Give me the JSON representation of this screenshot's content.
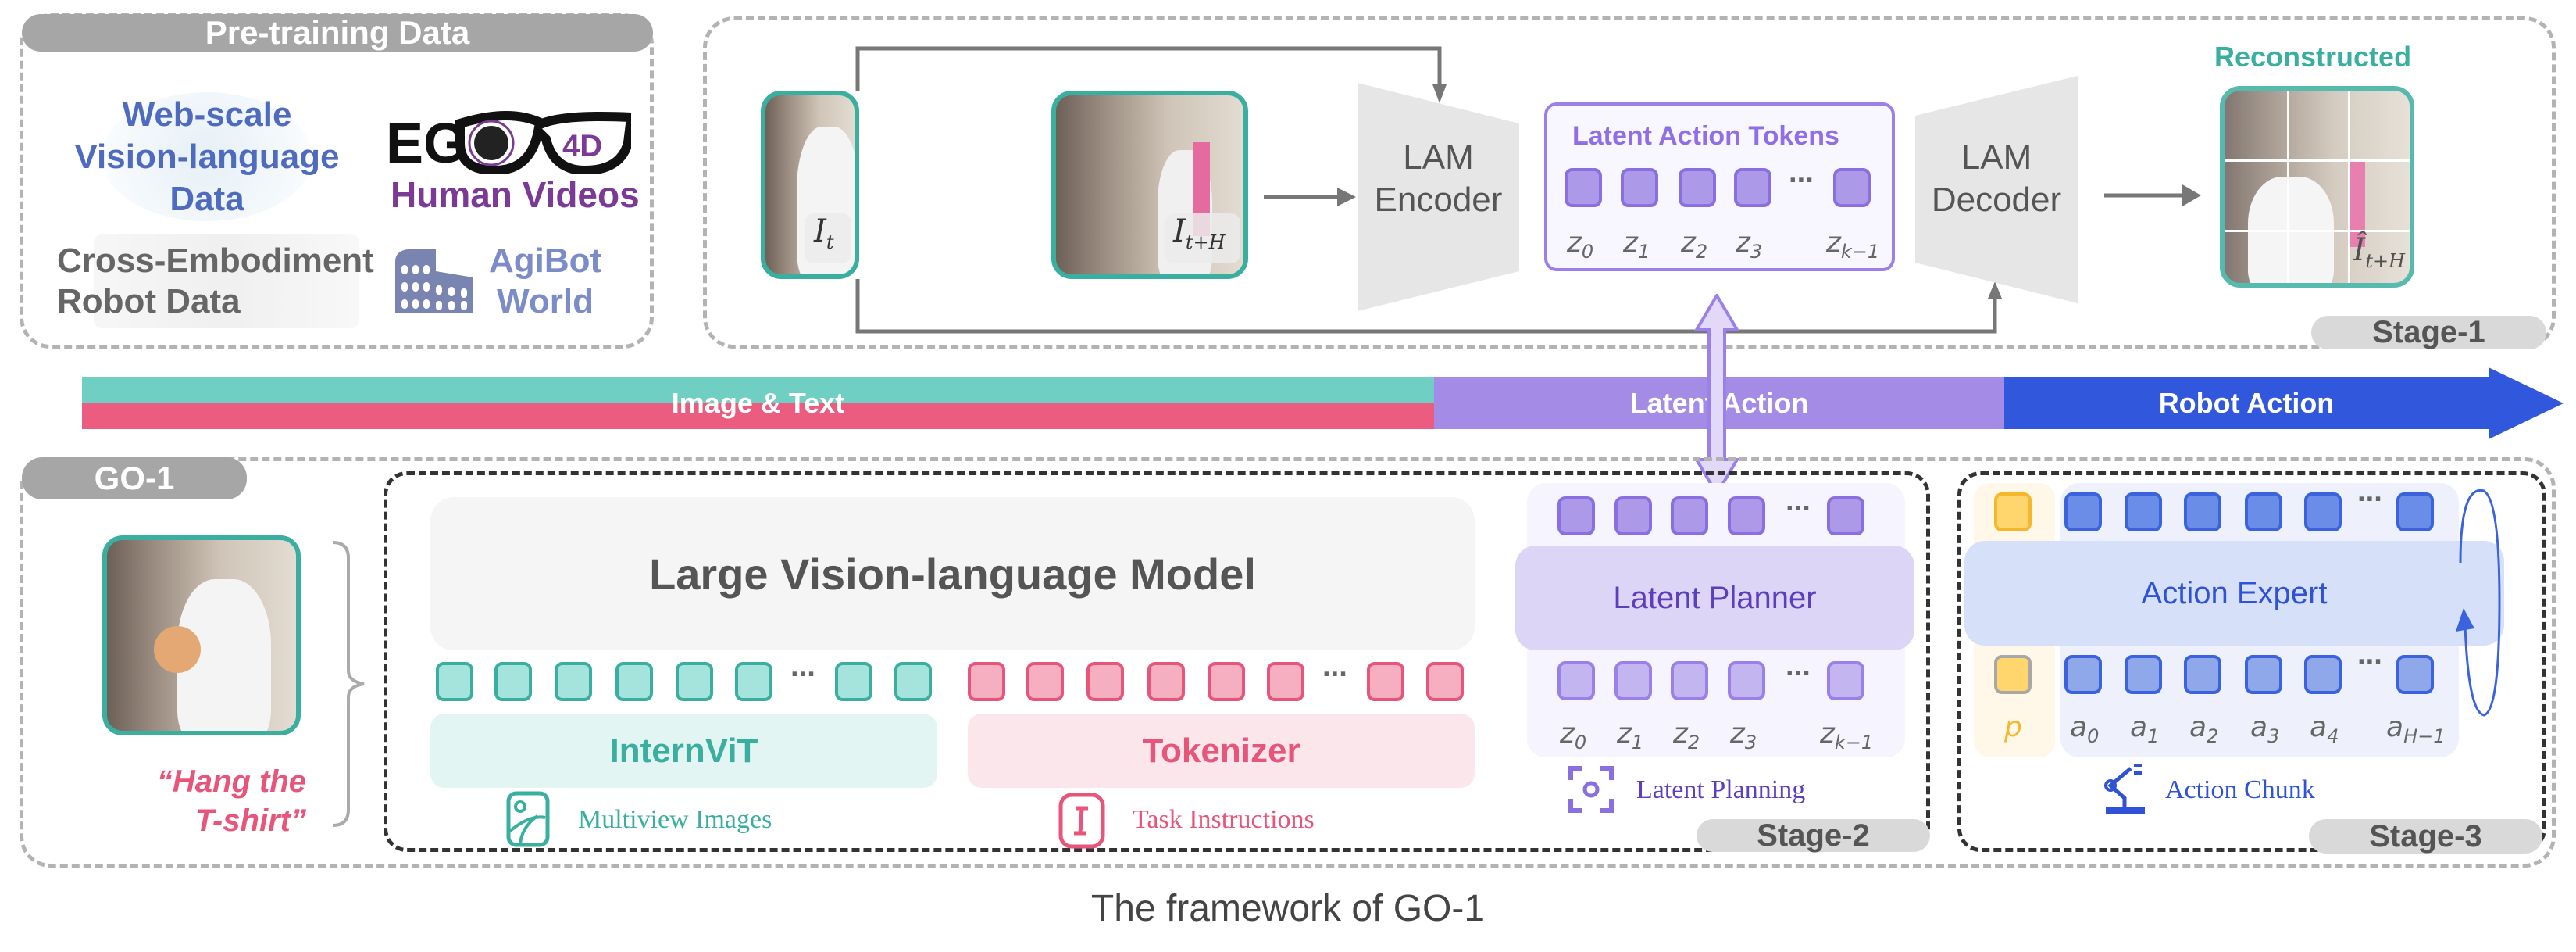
{
  "pretraining": {
    "title": "Pre-training Data",
    "web": [
      "Web-scale",
      "Vision-language",
      "Data"
    ],
    "ego_logo": "EGO4D",
    "human_videos": "Human Videos",
    "cross": [
      "Cross-Embodiment",
      "Robot Data"
    ],
    "agibot": [
      "AgiBot",
      "World"
    ],
    "colors": {
      "web": "#4f6bbf",
      "human": "#7b3a96",
      "cross": "#666666",
      "agibot": "#7b8cc8"
    }
  },
  "stage1": {
    "frame_labels": {
      "it": "I",
      "it_sub": "t",
      "ith": "I",
      "ith_sub": "t+H",
      "recon": "Î",
      "recon_sub": "t+H"
    },
    "encoder": [
      "LAM",
      "Encoder"
    ],
    "decoder": [
      "LAM",
      "Decoder"
    ],
    "tokens_title": "Latent Action Tokens",
    "z_labels": [
      "z",
      "0",
      "z",
      "1",
      "z",
      "2",
      "z",
      "3",
      "z",
      "k−1"
    ],
    "reconstructed": "Reconstructed",
    "stage": "Stage-1"
  },
  "band": {
    "image_text": "Image & Text",
    "latent": "Latent Action",
    "robot": "Robot Action",
    "colors": {
      "teal": "#6fcfc2",
      "pink": "#ec5c80",
      "purple": "#a48be6",
      "blue": "#3158dc"
    }
  },
  "go1": {
    "title": "GO-1",
    "instruction": [
      "“Hang the",
      "T-shirt”"
    ],
    "vlm": "Large Vision-language Model",
    "internvit": "InternViT",
    "tokenizer": "Tokenizer",
    "multiview": "Multiview Images",
    "task": "Task Instructions",
    "latent_planner": "Latent Planner",
    "latent_planning": "Latent Planning",
    "stage2": "Stage-2",
    "action_expert": "Action Expert",
    "p_label": "p",
    "a_labels": [
      "a",
      "0",
      "a",
      "1",
      "a",
      "2",
      "a",
      "3",
      "a",
      "4",
      "a",
      "H−1"
    ],
    "action_chunk": "Action Chunk",
    "stage3": "Stage-3"
  },
  "dots": "···",
  "caption": "The framework of GO-1"
}
